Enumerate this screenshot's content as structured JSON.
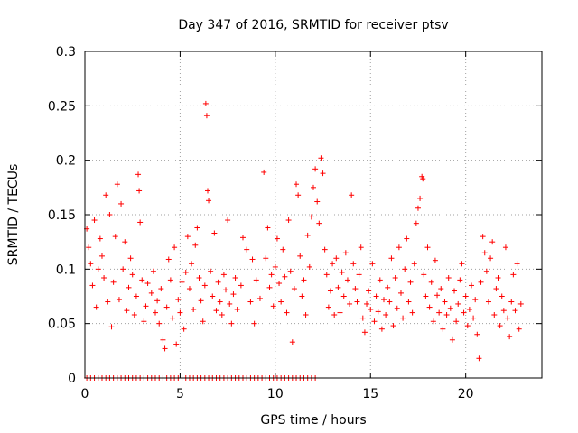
{
  "chart_data": {
    "type": "scatter",
    "title": "Day 347 of 2016, SRMTID for receiver ptsv",
    "xlabel": "GPS time / hours",
    "ylabel": "SRMTID / TECUs",
    "xlim": [
      0,
      24
    ],
    "ylim": [
      0,
      0.3
    ],
    "xticks": [
      0,
      5,
      10,
      15,
      20
    ],
    "yticks": [
      0,
      0.05,
      0.1,
      0.15,
      0.2,
      0.25,
      0.3
    ],
    "xtick_labels": [
      "0",
      "5",
      "10",
      "15",
      "20"
    ],
    "ytick_labels": [
      "0",
      "0.05",
      "0.1",
      "0.15",
      "0.2",
      "0.25",
      "0.3"
    ],
    "grid": true,
    "marker": "plus",
    "color": "#ff0000",
    "series": [
      {
        "points": [
          [
            0.1,
            0.137
          ],
          [
            0.2,
            0.12
          ],
          [
            0.3,
            0.105
          ],
          [
            0.4,
            0.085
          ],
          [
            0.5,
            0.145
          ],
          [
            0.6,
            0.065
          ],
          [
            0.7,
            0.1
          ],
          [
            0.8,
            0.128
          ],
          [
            0.9,
            0.112
          ],
          [
            1.0,
            0.092
          ],
          [
            1.1,
            0.168
          ],
          [
            1.2,
            0.07
          ],
          [
            1.3,
            0.15
          ],
          [
            1.4,
            0.047
          ],
          [
            1.5,
            0.088
          ],
          [
            1.6,
            0.13
          ],
          [
            1.7,
            0.178
          ],
          [
            1.8,
            0.072
          ],
          [
            1.9,
            0.16
          ],
          [
            2.0,
            0.1
          ],
          [
            2.1,
            0.125
          ],
          [
            2.2,
            0.062
          ],
          [
            2.3,
            0.083
          ],
          [
            2.4,
            0.11
          ],
          [
            2.5,
            0.095
          ],
          [
            2.6,
            0.058
          ],
          [
            2.7,
            0.075
          ],
          [
            2.8,
            0.187
          ],
          [
            2.85,
            0.172
          ],
          [
            2.9,
            0.143
          ],
          [
            3.0,
            0.09
          ],
          [
            3.1,
            0.052
          ],
          [
            3.2,
            0.066
          ],
          [
            3.3,
            0.087
          ],
          [
            3.5,
            0.078
          ],
          [
            3.6,
            0.098
          ],
          [
            3.7,
            0.06
          ],
          [
            3.8,
            0.071
          ],
          [
            3.9,
            0.05
          ],
          [
            4.0,
            0.082
          ],
          [
            4.1,
            0.035
          ],
          [
            4.2,
            0.027
          ],
          [
            4.3,
            0.065
          ],
          [
            4.4,
            0.109
          ],
          [
            4.5,
            0.09
          ],
          [
            4.6,
            0.055
          ],
          [
            4.7,
            0.12
          ],
          [
            4.8,
            0.031
          ],
          [
            4.9,
            0.072
          ],
          [
            5.0,
            0.06
          ],
          [
            5.1,
            0.088
          ],
          [
            5.2,
            0.045
          ],
          [
            5.3,
            0.097
          ],
          [
            5.4,
            0.13
          ],
          [
            5.5,
            0.082
          ],
          [
            5.6,
            0.105
          ],
          [
            5.7,
            0.063
          ],
          [
            5.8,
            0.122
          ],
          [
            5.9,
            0.138
          ],
          [
            6.0,
            0.092
          ],
          [
            6.1,
            0.071
          ],
          [
            6.2,
            0.052
          ],
          [
            6.3,
            0.085
          ],
          [
            6.35,
            0.252
          ],
          [
            6.4,
            0.241
          ],
          [
            6.45,
            0.172
          ],
          [
            6.5,
            0.163
          ],
          [
            6.6,
            0.098
          ],
          [
            6.7,
            0.075
          ],
          [
            6.8,
            0.133
          ],
          [
            6.9,
            0.062
          ],
          [
            7.0,
            0.088
          ],
          [
            7.1,
            0.07
          ],
          [
            7.2,
            0.058
          ],
          [
            7.3,
            0.095
          ],
          [
            7.4,
            0.081
          ],
          [
            7.5,
            0.145
          ],
          [
            7.6,
            0.068
          ],
          [
            7.7,
            0.05
          ],
          [
            7.8,
            0.077
          ],
          [
            7.9,
            0.092
          ],
          [
            8.0,
            0.063
          ],
          [
            8.2,
            0.085
          ],
          [
            8.3,
            0.129
          ],
          [
            8.5,
            0.118
          ],
          [
            8.7,
            0.07
          ],
          [
            8.8,
            0.109
          ],
          [
            8.9,
            0.05
          ],
          [
            9.0,
            0.09
          ],
          [
            9.2,
            0.073
          ],
          [
            9.4,
            0.189
          ],
          [
            9.5,
            0.11
          ],
          [
            9.6,
            0.138
          ],
          [
            9.7,
            0.083
          ],
          [
            9.8,
            0.095
          ],
          [
            9.9,
            0.066
          ],
          [
            10.0,
            0.102
          ],
          [
            10.1,
            0.128
          ],
          [
            10.2,
            0.087
          ],
          [
            10.3,
            0.07
          ],
          [
            10.4,
            0.118
          ],
          [
            10.5,
            0.093
          ],
          [
            10.6,
            0.06
          ],
          [
            10.7,
            0.145
          ],
          [
            10.8,
            0.098
          ],
          [
            10.9,
            0.033
          ],
          [
            11.0,
            0.082
          ],
          [
            11.1,
            0.178
          ],
          [
            11.2,
            0.168
          ],
          [
            11.3,
            0.112
          ],
          [
            11.4,
            0.075
          ],
          [
            11.5,
            0.09
          ],
          [
            11.6,
            0.058
          ],
          [
            11.7,
            0.131
          ],
          [
            11.8,
            0.102
          ],
          [
            11.9,
            0.148
          ],
          [
            12.0,
            0.175
          ],
          [
            12.1,
            0.192
          ],
          [
            12.2,
            0.162
          ],
          [
            12.3,
            0.142
          ],
          [
            12.4,
            0.202
          ],
          [
            12.5,
            0.188
          ],
          [
            12.6,
            0.118
          ],
          [
            12.7,
            0.095
          ],
          [
            12.8,
            0.065
          ],
          [
            12.9,
            0.08
          ],
          [
            13.0,
            0.105
          ],
          [
            13.1,
            0.058
          ],
          [
            13.2,
            0.11
          ],
          [
            13.3,
            0.083
          ],
          [
            13.4,
            0.06
          ],
          [
            13.5,
            0.097
          ],
          [
            13.6,
            0.075
          ],
          [
            13.7,
            0.115
          ],
          [
            13.8,
            0.09
          ],
          [
            13.9,
            0.068
          ],
          [
            14.0,
            0.168
          ],
          [
            14.1,
            0.105
          ],
          [
            14.2,
            0.082
          ],
          [
            14.3,
            0.07
          ],
          [
            14.4,
            0.095
          ],
          [
            14.5,
            0.12
          ],
          [
            14.6,
            0.055
          ],
          [
            14.7,
            0.042
          ],
          [
            14.8,
            0.068
          ],
          [
            14.9,
            0.08
          ],
          [
            15.0,
            0.063
          ],
          [
            15.1,
            0.105
          ],
          [
            15.2,
            0.052
          ],
          [
            15.3,
            0.075
          ],
          [
            15.4,
            0.061
          ],
          [
            15.5,
            0.09
          ],
          [
            15.6,
            0.045
          ],
          [
            15.7,
            0.072
          ],
          [
            15.8,
            0.058
          ],
          [
            15.9,
            0.083
          ],
          [
            16.0,
            0.07
          ],
          [
            16.1,
            0.11
          ],
          [
            16.2,
            0.048
          ],
          [
            16.3,
            0.092
          ],
          [
            16.4,
            0.064
          ],
          [
            16.5,
            0.12
          ],
          [
            16.6,
            0.078
          ],
          [
            16.7,
            0.055
          ],
          [
            16.8,
            0.1
          ],
          [
            16.9,
            0.128
          ],
          [
            17.0,
            0.07
          ],
          [
            17.1,
            0.088
          ],
          [
            17.2,
            0.06
          ],
          [
            17.3,
            0.105
          ],
          [
            17.4,
            0.142
          ],
          [
            17.5,
            0.156
          ],
          [
            17.6,
            0.165
          ],
          [
            17.7,
            0.185
          ],
          [
            17.75,
            0.183
          ],
          [
            17.8,
            0.095
          ],
          [
            17.9,
            0.075
          ],
          [
            18.0,
            0.12
          ],
          [
            18.1,
            0.065
          ],
          [
            18.2,
            0.088
          ],
          [
            18.3,
            0.052
          ],
          [
            18.4,
            0.108
          ],
          [
            18.5,
            0.076
          ],
          [
            18.6,
            0.06
          ],
          [
            18.7,
            0.082
          ],
          [
            18.8,
            0.045
          ],
          [
            18.9,
            0.07
          ],
          [
            19.0,
            0.058
          ],
          [
            19.1,
            0.092
          ],
          [
            19.2,
            0.064
          ],
          [
            19.3,
            0.035
          ],
          [
            19.4,
            0.08
          ],
          [
            19.5,
            0.052
          ],
          [
            19.6,
            0.068
          ],
          [
            19.7,
            0.09
          ],
          [
            19.8,
            0.105
          ],
          [
            19.9,
            0.06
          ],
          [
            20.0,
            0.075
          ],
          [
            20.1,
            0.048
          ],
          [
            20.2,
            0.063
          ],
          [
            20.3,
            0.085
          ],
          [
            20.4,
            0.055
          ],
          [
            20.5,
            0.072
          ],
          [
            20.6,
            0.04
          ],
          [
            20.7,
            0.018
          ],
          [
            20.8,
            0.088
          ],
          [
            20.9,
            0.13
          ],
          [
            21.0,
            0.115
          ],
          [
            21.1,
            0.098
          ],
          [
            21.2,
            0.07
          ],
          [
            21.3,
            0.11
          ],
          [
            21.4,
            0.125
          ],
          [
            21.5,
            0.058
          ],
          [
            21.6,
            0.082
          ],
          [
            21.7,
            0.092
          ],
          [
            21.8,
            0.048
          ],
          [
            21.9,
            0.075
          ],
          [
            22.0,
            0.062
          ],
          [
            22.1,
            0.12
          ],
          [
            22.2,
            0.055
          ],
          [
            22.3,
            0.038
          ],
          [
            22.4,
            0.07
          ],
          [
            22.5,
            0.095
          ],
          [
            22.6,
            0.062
          ],
          [
            22.7,
            0.105
          ],
          [
            22.8,
            0.045
          ],
          [
            22.9,
            0.068
          ]
        ]
      },
      {
        "points": [
          [
            0.1,
            0
          ],
          [
            0.3,
            0
          ],
          [
            0.5,
            0
          ],
          [
            0.7,
            0
          ],
          [
            0.9,
            0
          ],
          [
            1.1,
            0
          ],
          [
            1.3,
            0
          ],
          [
            1.5,
            0
          ],
          [
            1.7,
            0
          ],
          [
            1.9,
            0
          ],
          [
            2.1,
            0
          ],
          [
            2.3,
            0
          ],
          [
            2.5,
            0
          ],
          [
            2.7,
            0
          ],
          [
            2.9,
            0
          ],
          [
            3.1,
            0
          ],
          [
            3.3,
            0
          ],
          [
            3.5,
            0
          ],
          [
            3.7,
            0
          ],
          [
            3.9,
            0
          ],
          [
            4.1,
            0
          ],
          [
            4.3,
            0
          ],
          [
            4.5,
            0
          ],
          [
            4.7,
            0
          ],
          [
            4.9,
            0
          ],
          [
            5.1,
            0
          ],
          [
            5.3,
            0
          ],
          [
            5.5,
            0
          ],
          [
            5.7,
            0
          ],
          [
            5.9,
            0
          ],
          [
            6.1,
            0
          ],
          [
            6.3,
            0
          ],
          [
            6.5,
            0
          ],
          [
            6.7,
            0
          ],
          [
            6.9,
            0
          ],
          [
            7.1,
            0
          ],
          [
            7.3,
            0
          ],
          [
            7.5,
            0
          ],
          [
            7.7,
            0
          ],
          [
            7.9,
            0
          ],
          [
            8.1,
            0
          ],
          [
            8.3,
            0
          ],
          [
            8.5,
            0
          ],
          [
            8.7,
            0
          ],
          [
            8.9,
            0
          ],
          [
            9.1,
            0
          ],
          [
            9.3,
            0
          ],
          [
            9.5,
            0
          ],
          [
            9.7,
            0
          ],
          [
            9.9,
            0
          ],
          [
            10.1,
            0
          ],
          [
            10.3,
            0
          ],
          [
            10.5,
            0
          ],
          [
            10.7,
            0
          ],
          [
            10.9,
            0
          ],
          [
            11.1,
            0
          ],
          [
            11.3,
            0
          ],
          [
            11.5,
            0
          ],
          [
            11.7,
            0
          ],
          [
            11.9,
            0
          ],
          [
            12.1,
            0
          ]
        ]
      }
    ]
  }
}
